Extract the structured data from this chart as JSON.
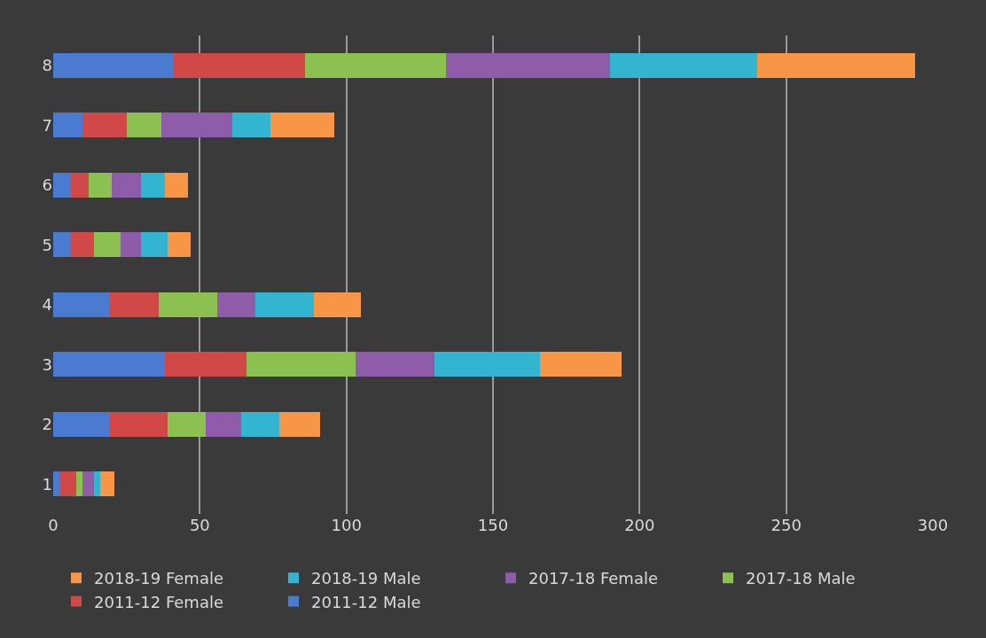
{
  "chart_data": {
    "type": "bar",
    "orientation": "horizontal",
    "stacked": true,
    "categories": [
      "8",
      "7",
      "6",
      "5",
      "4",
      "3",
      "2",
      "1"
    ],
    "series": [
      {
        "name": "2011-12 Male",
        "color": "#4a7bd0",
        "values": [
          41,
          10,
          6,
          6,
          19,
          38,
          19,
          2
        ]
      },
      {
        "name": "2011-12 Female",
        "color": "#d04848",
        "values": [
          45,
          15,
          6,
          8,
          17,
          28,
          20,
          6
        ]
      },
      {
        "name": "2017-18 Male",
        "color": "#8cc152",
        "values": [
          48,
          12,
          8,
          9,
          20,
          37,
          13,
          2
        ]
      },
      {
        "name": "2017-18 Female",
        "color": "#8e5ca8",
        "values": [
          56,
          24,
          10,
          7,
          13,
          27,
          12,
          4
        ]
      },
      {
        "name": "2018-19 Male",
        "color": "#33b4d0",
        "values": [
          50,
          13,
          8,
          9,
          20,
          36,
          13,
          2
        ]
      },
      {
        "name": "2018-19 Female",
        "color": "#f79646",
        "values": [
          54,
          22,
          8,
          8,
          16,
          28,
          14,
          5
        ]
      }
    ],
    "xlim": [
      0,
      300
    ],
    "xticks": [
      0,
      50,
      100,
      150,
      200,
      250,
      300
    ],
    "grid": "x",
    "legend": "bottom"
  }
}
